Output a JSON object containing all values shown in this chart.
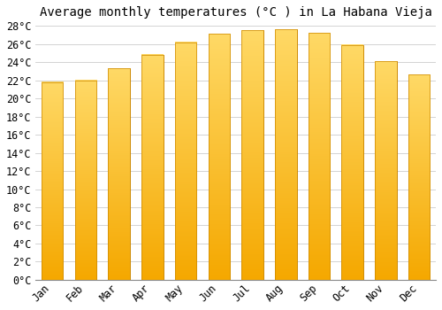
{
  "title": "Average monthly temperatures (°C ) in La Habana Vieja",
  "months": [
    "Jan",
    "Feb",
    "Mar",
    "Apr",
    "May",
    "Jun",
    "Jul",
    "Aug",
    "Sep",
    "Oct",
    "Nov",
    "Dec"
  ],
  "temperatures": [
    21.8,
    22.0,
    23.3,
    24.8,
    26.2,
    27.1,
    27.5,
    27.6,
    27.2,
    25.9,
    24.1,
    22.6
  ],
  "bar_color_top": "#FFD966",
  "bar_color_bottom": "#F5A800",
  "bar_edge_color": "#CC8800",
  "background_color": "#FFFFFF",
  "grid_color": "#CCCCCC",
  "ylim": [
    0,
    28
  ],
  "ytick_step": 2,
  "title_fontsize": 10,
  "tick_fontsize": 8.5,
  "font_family": "monospace"
}
